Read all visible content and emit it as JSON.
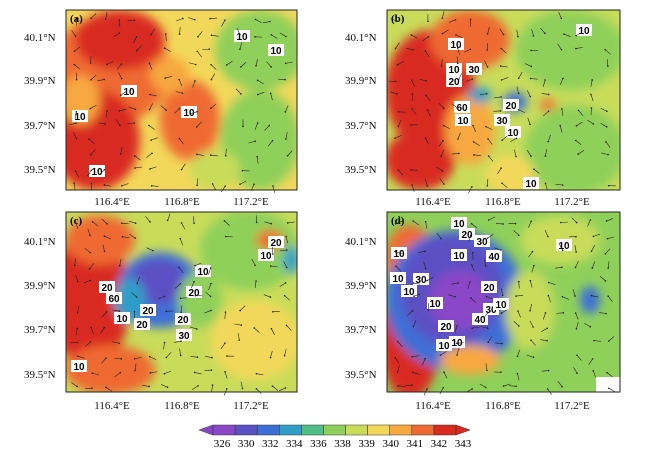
{
  "colorbar": {
    "ticks": [
      "326",
      "330",
      "332",
      "334",
      "336",
      "338",
      "339",
      "340",
      "341",
      "342",
      "343"
    ],
    "colors": [
      "#8a46c8",
      "#5b4fc4",
      "#3c6fd6",
      "#2f9ec9",
      "#4fbf8a",
      "#8fd05a",
      "#c8dc5a",
      "#f2d85a",
      "#f7a840",
      "#ef6a30",
      "#d92a20"
    ]
  },
  "axes": {
    "lat_labels": [
      "40.1°N",
      "39.9°N",
      "39.7°N",
      "39.5°N"
    ],
    "lon_labels": [
      "116.4°E",
      "116.8°E",
      "117.2°E"
    ]
  },
  "panels": [
    {
      "id": "a",
      "label": "(a)",
      "contour_labels": [
        "10",
        "10",
        "10",
        "10",
        "10"
      ]
    },
    {
      "id": "b",
      "label": "(b)",
      "contour_labels": [
        "10",
        "10",
        "10",
        "20",
        "30",
        "60",
        "10",
        "20",
        "30",
        "10",
        "10",
        "10"
      ]
    },
    {
      "id": "c",
      "label": "(c)",
      "contour_labels": [
        "20",
        "10",
        "10",
        "20",
        "60",
        "20",
        "20",
        "10",
        "20",
        "20",
        "30",
        "10"
      ]
    },
    {
      "id": "d",
      "label": "(d)",
      "contour_labels": [
        "10",
        "20",
        "30",
        "10",
        "40",
        "10",
        "10",
        "10",
        "30",
        "10",
        "20",
        "10",
        "30",
        "10",
        "40",
        "20",
        "10",
        "10"
      ]
    }
  ],
  "colors": {
    "base": "#d92a20",
    "mid": "#f7a840",
    "low": "#8fd05a",
    "cool": "#3c6fd6",
    "coldest": "#8a46c8"
  }
}
